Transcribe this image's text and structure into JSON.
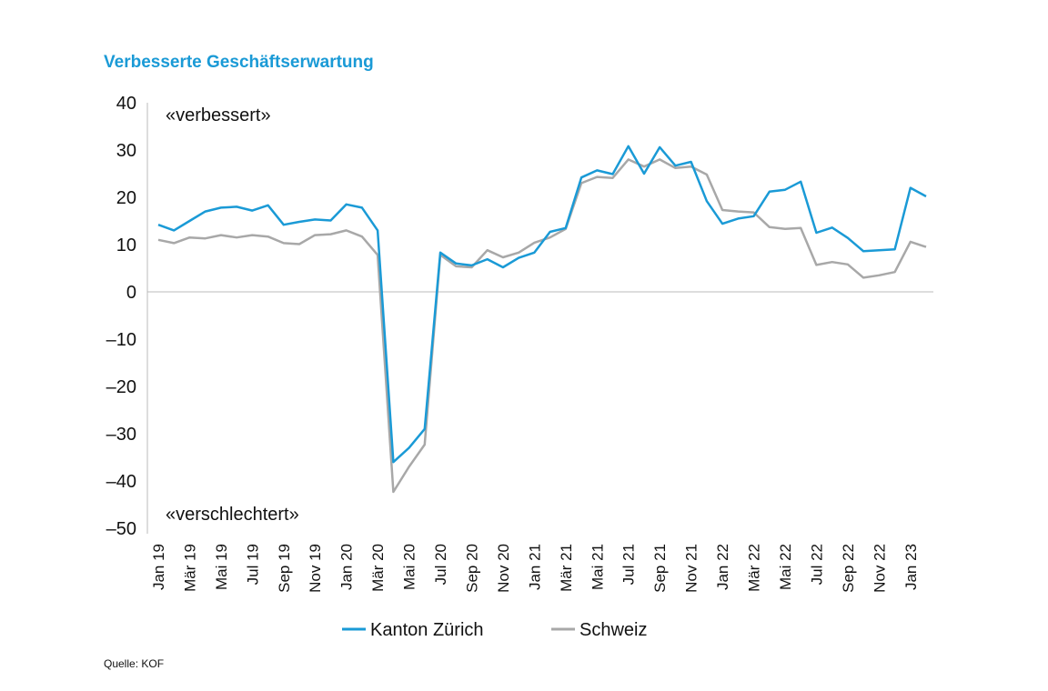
{
  "chart_data": {
    "type": "line",
    "title": "Verbesserte Geschäftserwartung",
    "annotations": [
      "«verbessert»",
      "«verschlechtert»"
    ],
    "source": "Quelle: KOF",
    "categories": [
      "Jan 19",
      null,
      "Mär 19",
      null,
      "Mai 19",
      null,
      "Jul 19",
      null,
      "Sep 19",
      null,
      "Nov 19",
      null,
      "Jan 20",
      null,
      "Mär 20",
      null,
      "Mai 20",
      null,
      "Jul 20",
      null,
      "Sep 20",
      null,
      "Nov 20",
      null,
      "Jan 21",
      null,
      "Mär 21",
      null,
      "Mai 21",
      null,
      "Jul 21",
      null,
      "Sep 21",
      null,
      "Nov 21",
      null,
      "Jan 22",
      null,
      "Mär 22",
      null,
      "Mai 22",
      null,
      "Jul 22",
      null,
      "Sep 22",
      null,
      "Nov 22",
      null,
      "Jan 23",
      null
    ],
    "series": [
      {
        "name": "Kanton Zürich",
        "color": "#1a9ad6",
        "values": [
          14.2,
          13,
          15,
          17,
          17.8,
          18,
          17.2,
          18.3,
          14.2,
          14.8,
          15.3,
          15.1,
          18.5,
          17.8,
          13,
          -36,
          -33,
          -29,
          8.3,
          6,
          5.6,
          6.9,
          5.2,
          7.2,
          8.3,
          12.7,
          13.5,
          24.2,
          25.7,
          24.9,
          30.8,
          25,
          30.6,
          26.7,
          27.5,
          19.2,
          14.4,
          15.5,
          16,
          21.2,
          21.6,
          23.3,
          12.5,
          13.6,
          11.4,
          8.6,
          8.8,
          9,
          22,
          20.2
        ]
      },
      {
        "name": "Schweiz",
        "color": "#a8a8a8",
        "values": [
          11,
          10.3,
          11.5,
          11.3,
          12,
          11.5,
          12,
          11.7,
          10.3,
          10.1,
          12,
          12.2,
          13,
          11.7,
          7.8,
          -42.3,
          -37,
          -32.3,
          7.8,
          5.4,
          5.2,
          8.8,
          7.3,
          8.3,
          10.4,
          11.5,
          13.3,
          23,
          24.3,
          24.1,
          28,
          26.5,
          28,
          26.2,
          26.5,
          24.8,
          17.3,
          17,
          16.8,
          13.7,
          13.3,
          13.5,
          5.7,
          6.3,
          5.8,
          3,
          3.5,
          4.2,
          10.6,
          9.5
        ]
      }
    ],
    "ylim": [
      -50,
      40
    ],
    "yticks": [
      {
        "value": -50,
        "label": "–50"
      },
      {
        "value": -40,
        "label": "–40"
      },
      {
        "value": -30,
        "label": "–30"
      },
      {
        "value": -20,
        "label": "–20"
      },
      {
        "value": -10,
        "label": "–10"
      },
      0,
      10,
      20,
      30,
      40
    ]
  }
}
